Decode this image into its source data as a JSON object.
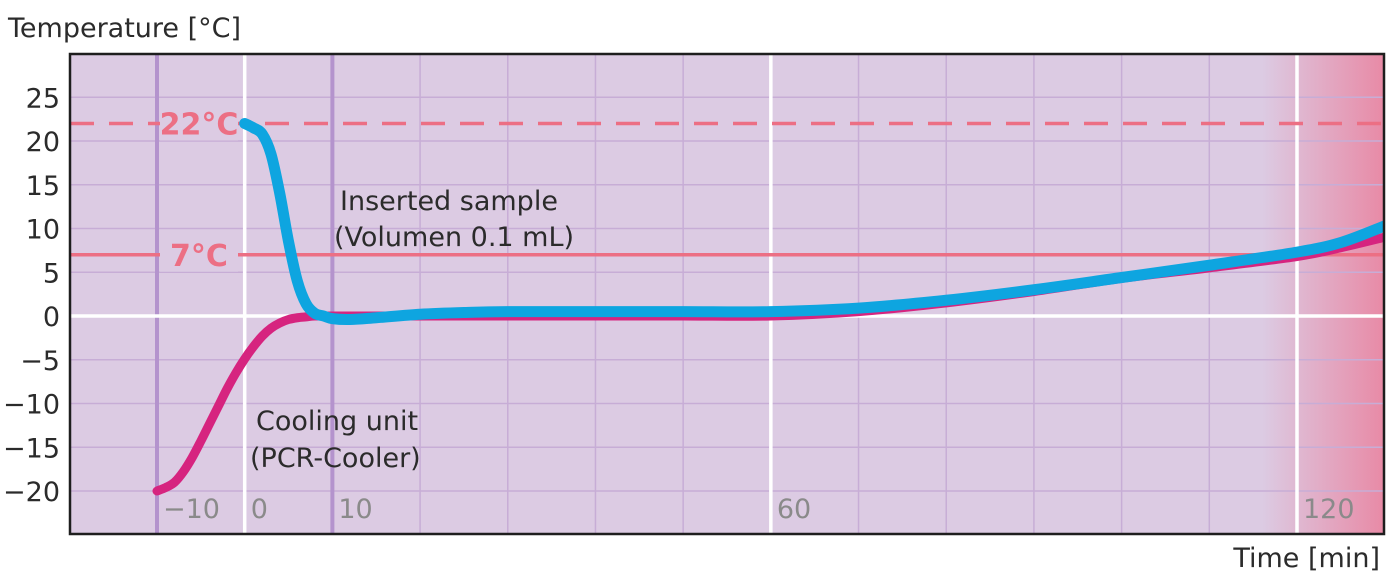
{
  "chart_data": {
    "type": "line",
    "title": "",
    "ylabel": "Temperature [°C]",
    "xlabel": "Time [min]",
    "xlim": [
      -15,
      130
    ],
    "ylim": [
      -25,
      30
    ],
    "grid": true,
    "y_ticks": [
      {
        "value": 25,
        "label": "25"
      },
      {
        "value": 20,
        "label": "20"
      },
      {
        "value": 15,
        "label": "15"
      },
      {
        "value": 10,
        "label": "10"
      },
      {
        "value": 5,
        "label": "5"
      },
      {
        "value": 0,
        "label": "0"
      },
      {
        "value": -5,
        "label": "−5"
      },
      {
        "value": -10,
        "label": "−10"
      },
      {
        "value": -15,
        "label": "−15"
      },
      {
        "value": -20,
        "label": "−20"
      }
    ],
    "x_ticks": [
      {
        "value": -10,
        "label": "−10"
      },
      {
        "value": 0,
        "label": "0"
      },
      {
        "value": 10,
        "label": "10"
      },
      {
        "value": 60,
        "label": "60"
      },
      {
        "value": 120,
        "label": "120"
      }
    ],
    "reference_lines": [
      {
        "label": "22°C",
        "value": 22,
        "style": "dashed"
      },
      {
        "label": "7°C",
        "value": 7,
        "style": "solid"
      }
    ],
    "series": [
      {
        "name": "Cooling unit (PCR-Cooler)",
        "label_lines": [
          "Cooling unit",
          "(PCR-Cooler)"
        ],
        "color": "#d6247f",
        "x": [
          -10,
          -9,
          -8,
          -7,
          -6,
          -5,
          -4,
          -3,
          -2,
          -1,
          0,
          1,
          2,
          3,
          4,
          5,
          6,
          7,
          8,
          10,
          15,
          20,
          30,
          40,
          50,
          60,
          70,
          80,
          90,
          100,
          110,
          120,
          125,
          130
        ],
        "y": [
          -20,
          -19.6,
          -19,
          -17.8,
          -16.2,
          -14.3,
          -12.3,
          -10.3,
          -8.3,
          -6.5,
          -4.9,
          -3.5,
          -2.3,
          -1.4,
          -0.8,
          -0.4,
          -0.2,
          -0.1,
          0,
          0,
          0,
          0,
          0,
          0,
          0,
          0,
          0.5,
          1.5,
          2.8,
          4.3,
          5.5,
          6.8,
          7.8,
          9
        ]
      },
      {
        "name": "Inserted sample (Volumen 0.1 mL)",
        "label_lines": [
          "Inserted sample",
          "(Volumen 0.1 mL)"
        ],
        "color": "#0ea5e0",
        "x": [
          0,
          1,
          2,
          3,
          4,
          5,
          6,
          7,
          8,
          9,
          10,
          12,
          15,
          20,
          25,
          30,
          40,
          50,
          60,
          70,
          80,
          90,
          100,
          110,
          120,
          125,
          130
        ],
        "y": [
          22,
          21.5,
          20.8,
          18.5,
          14,
          8.5,
          4,
          1.4,
          0.3,
          0,
          -0.3,
          -0.4,
          -0.2,
          0.2,
          0.4,
          0.5,
          0.5,
          0.5,
          0.5,
          0.9,
          1.8,
          3,
          4.4,
          5.8,
          7.3,
          8.4,
          10.3
        ]
      }
    ],
    "colors": {
      "plot_bg": "#dccbe3",
      "hot_zone": "#e88aa6",
      "grid_minor": "#c7add6",
      "grid_major": "#ffffff",
      "axis_purple": "#b493cd",
      "reference": "#ec6f84"
    }
  }
}
